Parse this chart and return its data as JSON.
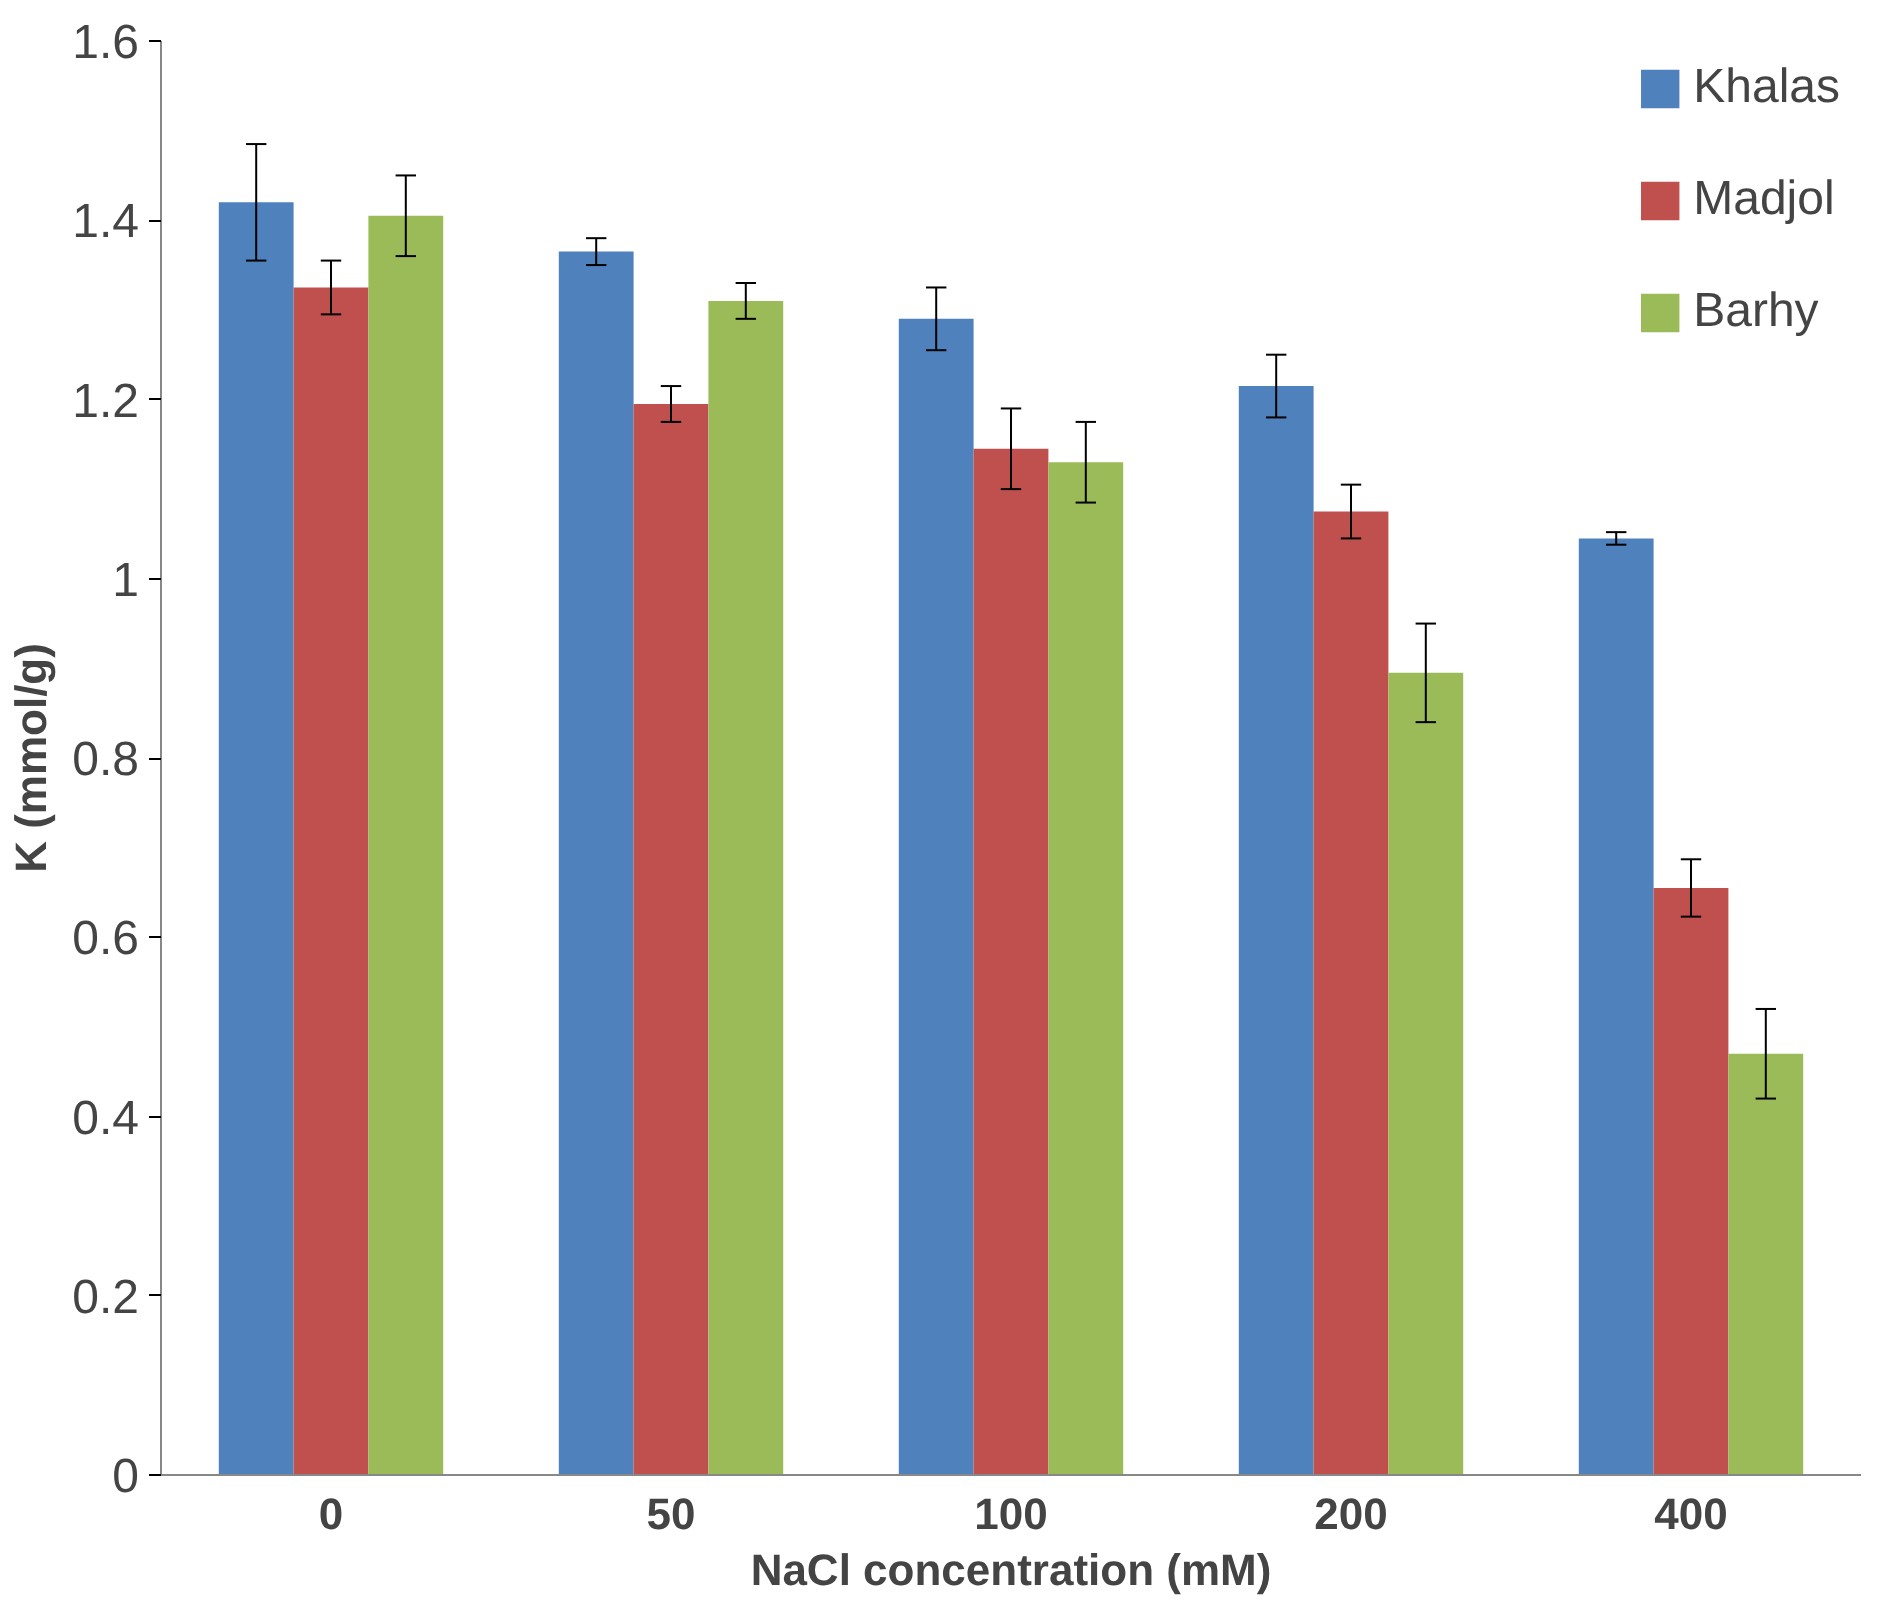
{
  "chart_data": {
    "type": "bar",
    "xlabel": "NaCl concentration (mM)",
    "ylabel": "K (mmol/g)",
    "categories": [
      "0",
      "50",
      "100",
      "200",
      "400"
    ],
    "series": [
      {
        "name": "Khalas",
        "color": "#4f81bd",
        "values": [
          1.42,
          1.365,
          1.29,
          1.215,
          1.045
        ],
        "errors": [
          0.065,
          0.015,
          0.035,
          0.035,
          0.007
        ]
      },
      {
        "name": "Madjol",
        "color": "#c0504d",
        "values": [
          1.325,
          1.195,
          1.145,
          1.075,
          0.655
        ],
        "errors": [
          0.03,
          0.02,
          0.045,
          0.03,
          0.032
        ]
      },
      {
        "name": "Barhy",
        "color": "#9bbb59",
        "values": [
          1.405,
          1.31,
          1.13,
          0.895,
          0.47
        ],
        "errors": [
          0.045,
          0.02,
          0.045,
          0.055,
          0.05
        ]
      }
    ],
    "ylim": [
      0,
      1.6
    ],
    "yticks": [
      0,
      0.2,
      0.4,
      0.6,
      0.8,
      1,
      1.2,
      1.4,
      1.6
    ],
    "grid": false,
    "legend": "top right"
  }
}
